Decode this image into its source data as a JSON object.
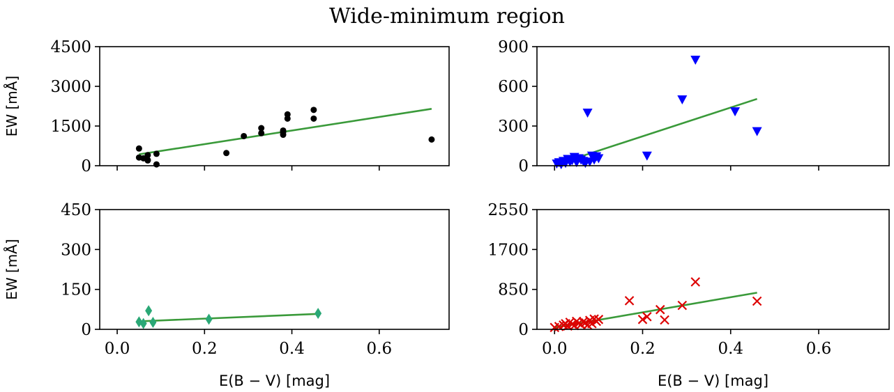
{
  "figure": {
    "title": "Wide-minimum region"
  },
  "chart_data": [
    {
      "type": "scatter",
      "marker": "circle",
      "color": "#000000",
      "fit_color": "#3a9a3a",
      "xlim": [
        -0.04,
        0.76
      ],
      "ylim": [
        0,
        4500
      ],
      "xticks": [
        0.0,
        0.2,
        0.4,
        0.6
      ],
      "xtick_labels": [
        "",
        "",
        "",
        ""
      ],
      "yticks": [
        0,
        1500,
        3000,
        4500
      ],
      "ytick_labels": [
        "0",
        "1500",
        "3000",
        "4500"
      ],
      "xlabel": "",
      "ylabel": "EW [mÅ]",
      "x": [
        0.05,
        0.05,
        0.06,
        0.07,
        0.07,
        0.07,
        0.09,
        0.09,
        0.25,
        0.29,
        0.33,
        0.33,
        0.38,
        0.38,
        0.38,
        0.39,
        0.39,
        0.45,
        0.45,
        0.72
      ],
      "y": [
        650,
        310,
        280,
        400,
        220,
        200,
        450,
        50,
        480,
        1120,
        1420,
        1230,
        1330,
        1270,
        1170,
        1940,
        1780,
        2110,
        1780,
        990
      ],
      "fit": {
        "x": [
          0.05,
          0.72
        ],
        "y": [
          430,
          2150
        ]
      }
    },
    {
      "type": "scatter",
      "marker": "triangle-down",
      "color": "#0000ff",
      "fit_color": "#3a9a3a",
      "xlim": [
        -0.04,
        0.76
      ],
      "ylim": [
        0,
        900
      ],
      "xticks": [
        0.0,
        0.2,
        0.4,
        0.6
      ],
      "xtick_labels": [
        "",
        "",
        "",
        ""
      ],
      "yticks": [
        0,
        300,
        600,
        900
      ],
      "ytick_labels": [
        "0",
        "300",
        "600",
        "900"
      ],
      "xlabel": "",
      "ylabel": "",
      "x": [
        0.005,
        0.01,
        0.015,
        0.02,
        0.025,
        0.03,
        0.035,
        0.04,
        0.045,
        0.05,
        0.055,
        0.06,
        0.065,
        0.07,
        0.075,
        0.08,
        0.085,
        0.09,
        0.095,
        0.1,
        0.21,
        0.29,
        0.32,
        0.41,
        0.46
      ],
      "y": [
        15,
        25,
        10,
        35,
        20,
        50,
        30,
        40,
        65,
        25,
        55,
        45,
        35,
        20,
        400,
        30,
        75,
        45,
        70,
        55,
        75,
        500,
        800,
        410,
        260
      ],
      "fit": {
        "x": [
          0.0,
          0.46
        ],
        "y": [
          5,
          505
        ]
      }
    },
    {
      "type": "scatter",
      "marker": "diamond",
      "color": "#2aa876",
      "fit_color": "#3a9a3a",
      "xlim": [
        -0.04,
        0.76
      ],
      "ylim": [
        0,
        450
      ],
      "xticks": [
        0.0,
        0.2,
        0.4,
        0.6
      ],
      "xtick_labels": [
        "0.0",
        "0.2",
        "0.4",
        "0.6"
      ],
      "yticks": [
        0,
        150,
        300,
        450
      ],
      "ytick_labels": [
        "0",
        "150",
        "300",
        "450"
      ],
      "xlabel": "E(B − V) [mag]",
      "ylabel": "EW [mÅ]",
      "x": [
        0.05,
        0.06,
        0.072,
        0.082,
        0.21,
        0.46
      ],
      "y": [
        28,
        22,
        70,
        26,
        38,
        60
      ],
      "fit": {
        "x": [
          0.05,
          0.46
        ],
        "y": [
          30,
          58
        ]
      }
    },
    {
      "type": "scatter",
      "marker": "x",
      "color": "#dd0000",
      "fit_color": "#3a9a3a",
      "xlim": [
        -0.04,
        0.76
      ],
      "ylim": [
        0,
        2550
      ],
      "xticks": [
        0.0,
        0.2,
        0.4,
        0.6
      ],
      "xtick_labels": [
        "0.0",
        "0.2",
        "0.4",
        "0.6"
      ],
      "yticks": [
        0,
        850,
        1700,
        2550
      ],
      "ytick_labels": [
        "0",
        "850",
        "1700",
        "2550"
      ],
      "xlabel": "E(B − V) [mag]",
      "ylabel": "",
      "x": [
        0.0,
        0.01,
        0.02,
        0.025,
        0.03,
        0.035,
        0.04,
        0.045,
        0.05,
        0.055,
        0.06,
        0.065,
        0.07,
        0.075,
        0.08,
        0.085,
        0.09,
        0.095,
        0.1,
        0.17,
        0.2,
        0.21,
        0.24,
        0.25,
        0.29,
        0.32,
        0.46
      ],
      "y": [
        40,
        60,
        90,
        120,
        70,
        150,
        110,
        80,
        170,
        130,
        100,
        160,
        140,
        90,
        190,
        120,
        220,
        170,
        210,
        610,
        210,
        270,
        420,
        200,
        510,
        1010,
        600
      ],
      "fit": {
        "x": [
          0.0,
          0.46
        ],
        "y": [
          40,
          780
        ]
      }
    }
  ]
}
